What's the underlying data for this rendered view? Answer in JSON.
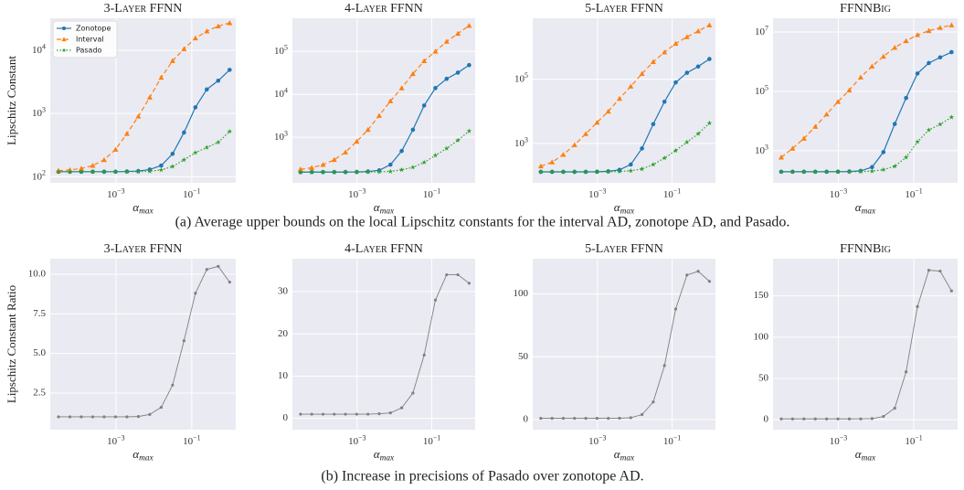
{
  "chart_data": [
    {
      "type": "line",
      "title": "3-Layer FFNN",
      "xlabel": "α_max",
      "ylabel": "Lipschitz Constant",
      "x": [
        3.0517578125e-05,
        6.103515625e-05,
        0.0001220703125,
        0.000244140625,
        0.00048828125,
        0.0009765625,
        0.001953125,
        0.00390625,
        0.0078125,
        0.015625,
        0.03125,
        0.0625,
        0.125,
        0.25,
        0.5,
        1
      ],
      "series": [
        {
          "name": "Zonotope",
          "color": "#1f77b4",
          "marker": "o",
          "linestyle": "solid",
          "values": [
            120,
            120,
            120,
            120,
            120,
            120,
            121,
            123,
            130,
            150,
            230,
            500,
            1250,
            2400,
            3300,
            4900
          ]
        },
        {
          "name": "Interval",
          "color": "#ff7f0e",
          "marker": "^",
          "linestyle": "dashed",
          "values": [
            125,
            128,
            135,
            150,
            185,
            270,
            480,
            900,
            1800,
            3700,
            6800,
            10500,
            15500,
            20000,
            24000,
            27000
          ]
        },
        {
          "name": "Pasado",
          "color": "#2ca02c",
          "marker": "*",
          "linestyle": "dotted",
          "values": [
            120,
            120,
            120,
            120,
            120,
            120,
            120,
            120,
            122,
            128,
            145,
            185,
            240,
            290,
            350,
            520
          ]
        }
      ],
      "xscale": "log",
      "yscale": "log",
      "xlim": [
        1.85e-05,
        1.45
      ],
      "ylim": [
        80,
        32000
      ],
      "xticks": [
        {
          "value": 0.001,
          "label": "10^−3"
        },
        {
          "value": 0.1,
          "label": "10^−1"
        }
      ],
      "yticks": [
        {
          "value": 100,
          "label": "10^2"
        },
        {
          "value": 1000,
          "label": "10^3"
        },
        {
          "value": 10000,
          "label": "10^4"
        }
      ],
      "grid": true,
      "legend": "upper left"
    },
    {
      "type": "line",
      "title": "4-Layer FFNN",
      "xlabel": "α_max",
      "x": [
        3.0517578125e-05,
        6.103515625e-05,
        0.0001220703125,
        0.000244140625,
        0.00048828125,
        0.0009765625,
        0.001953125,
        0.00390625,
        0.0078125,
        0.015625,
        0.03125,
        0.0625,
        0.125,
        0.25,
        0.5,
        1
      ],
      "series": [
        {
          "name": "Zonotope",
          "color": "#1f77b4",
          "marker": "o",
          "linestyle": "solid",
          "values": [
            155,
            155,
            155,
            155,
            155,
            156,
            160,
            170,
            230,
            480,
            1500,
            5500,
            14000,
            23000,
            32000,
            48000
          ]
        },
        {
          "name": "Interval",
          "color": "#ff7f0e",
          "marker": "^",
          "linestyle": "dashed",
          "values": [
            180,
            195,
            230,
            300,
            450,
            800,
            1500,
            3200,
            7000,
            14000,
            30000,
            60000,
            100000,
            170000,
            260000,
            400000
          ]
        },
        {
          "name": "Pasado",
          "color": "#2ca02c",
          "marker": "*",
          "linestyle": "dotted",
          "values": [
            155,
            155,
            155,
            155,
            155,
            155,
            155,
            157,
            160,
            175,
            200,
            260,
            380,
            550,
            850,
            1400
          ]
        }
      ],
      "xscale": "log",
      "yscale": "log",
      "xlim": [
        1.85e-05,
        1.45
      ],
      "ylim": [
        87,
        590000
      ],
      "xticks": [
        {
          "value": 0.001,
          "label": "10^−3"
        },
        {
          "value": 0.1,
          "label": "10^−1"
        }
      ],
      "yticks": [
        {
          "value": 1000,
          "label": "10^3"
        },
        {
          "value": 10000,
          "label": "10^4"
        },
        {
          "value": 100000,
          "label": "10^5"
        }
      ],
      "grid": true
    },
    {
      "type": "line",
      "title": "5-Layer FFNN",
      "xlabel": "α_max",
      "x": [
        3.0517578125e-05,
        6.103515625e-05,
        0.0001220703125,
        0.000244140625,
        0.00048828125,
        0.0009765625,
        0.001953125,
        0.00390625,
        0.0078125,
        0.015625,
        0.03125,
        0.0625,
        0.125,
        0.25,
        0.5,
        1
      ],
      "series": [
        {
          "name": "Zonotope",
          "color": "#1f77b4",
          "marker": "o",
          "linestyle": "solid",
          "values": [
            130,
            130,
            130,
            130,
            130,
            131,
            135,
            150,
            220,
            700,
            4000,
            20000,
            80000,
            160000,
            250000,
            430000
          ]
        },
        {
          "name": "Interval",
          "color": "#ff7f0e",
          "marker": "^",
          "linestyle": "dashed",
          "values": [
            195,
            260,
            450,
            900,
            2000,
            4500,
            10000,
            25000,
            60000,
            150000,
            350000,
            700000,
            1300000,
            2100000,
            3200000,
            4900000
          ]
        },
        {
          "name": "Pasado",
          "color": "#2ca02c",
          "marker": "*",
          "linestyle": "dotted",
          "values": [
            130,
            130,
            130,
            130,
            130,
            130,
            131,
            133,
            140,
            160,
            220,
            350,
            600,
            1100,
            2000,
            4300
          ]
        }
      ],
      "xscale": "log",
      "yscale": "log",
      "xlim": [
        1.85e-05,
        1.45
      ],
      "ylim": [
        59,
        8000000
      ],
      "xticks": [
        {
          "value": 0.001,
          "label": "10^−3"
        },
        {
          "value": 0.1,
          "label": "10^−1"
        }
      ],
      "yticks": [
        {
          "value": 1000,
          "label": "10^3"
        },
        {
          "value": 100000,
          "label": "10^5"
        }
      ],
      "grid": true
    },
    {
      "type": "line",
      "title": "FFNNBig",
      "xlabel": "α_max",
      "x": [
        3.0517578125e-05,
        6.103515625e-05,
        0.0001220703125,
        0.000244140625,
        0.00048828125,
        0.0009765625,
        0.001953125,
        0.00390625,
        0.0078125,
        0.015625,
        0.03125,
        0.0625,
        0.125,
        0.25,
        0.5,
        1
      ],
      "series": [
        {
          "name": "Zonotope",
          "color": "#1f77b4",
          "marker": "o",
          "linestyle": "solid",
          "values": [
            196,
            196,
            196,
            196,
            196,
            197,
            200,
            210,
            280,
            900,
            8000,
            60000,
            400000,
            900000,
            1400000,
            2100000
          ]
        },
        {
          "name": "Interval",
          "color": "#ff7f0e",
          "marker": "^",
          "linestyle": "dashed",
          "values": [
            600,
            1200,
            2600,
            6500,
            17000,
            45000,
            110000,
            300000,
            700000,
            1500000,
            3000000,
            5000000,
            8000000,
            11000000,
            14000000,
            17000000
          ]
        },
        {
          "name": "Pasado",
          "color": "#2ca02c",
          "marker": "*",
          "linestyle": "dotted",
          "values": [
            196,
            196,
            196,
            196,
            196,
            196,
            197,
            199,
            205,
            230,
            300,
            600,
            2000,
            5000,
            7800,
            13500
          ]
        }
      ],
      "xscale": "log",
      "yscale": "log",
      "xlim": [
        1.85e-05,
        1.45
      ],
      "ylim": [
        83,
        29000000
      ],
      "xticks": [
        {
          "value": 0.001,
          "label": "10^−3"
        },
        {
          "value": 0.1,
          "label": "10^−1"
        }
      ],
      "yticks": [
        {
          "value": 1000,
          "label": "10^3"
        },
        {
          "value": 100000,
          "label": "10^5"
        },
        {
          "value": 10000000,
          "label": "10^7"
        }
      ],
      "grid": true
    },
    {
      "type": "line",
      "title": "3-Layer FFNN",
      "xlabel": "α_max",
      "ylabel": "Lipschitz Constant Ratio",
      "x": [
        3.0517578125e-05,
        6.103515625e-05,
        0.0001220703125,
        0.000244140625,
        0.00048828125,
        0.0009765625,
        0.001953125,
        0.00390625,
        0.0078125,
        0.015625,
        0.03125,
        0.0625,
        0.125,
        0.25,
        0.5,
        1
      ],
      "series": [
        {
          "color": "#808080",
          "marker": "o",
          "linestyle": "solid",
          "values": [
            1,
            1,
            1,
            1,
            1,
            1,
            1,
            1.02,
            1.15,
            1.6,
            3.0,
            5.8,
            8.8,
            10.3,
            10.5,
            9.5
          ]
        }
      ],
      "xscale": "log",
      "yscale": "linear",
      "xlim": [
        1.85e-05,
        1.45
      ],
      "ylim": [
        0.19,
        10.98
      ],
      "xticks": [
        {
          "value": 0.001,
          "label": "10^−3"
        },
        {
          "value": 0.1,
          "label": "10^−1"
        }
      ],
      "yticks": [
        2.5,
        {
          "value": 5,
          "label": "5.0"
        },
        7.5,
        {
          "value": 10,
          "label": "10.0"
        }
      ],
      "grid": true
    },
    {
      "type": "line",
      "title": "4-Layer FFNN",
      "xlabel": "α_max",
      "x": [
        3.0517578125e-05,
        6.103515625e-05,
        0.0001220703125,
        0.000244140625,
        0.00048828125,
        0.0009765625,
        0.001953125,
        0.00390625,
        0.0078125,
        0.015625,
        0.03125,
        0.0625,
        0.125,
        0.25,
        0.5,
        1
      ],
      "series": [
        {
          "color": "#808080",
          "marker": "o",
          "linestyle": "solid",
          "values": [
            1,
            1,
            1,
            1,
            1,
            1,
            1,
            1.1,
            1.3,
            2.5,
            6,
            15,
            28,
            34,
            34,
            32
          ]
        }
      ],
      "xscale": "log",
      "yscale": "linear",
      "xlim": [
        1.85e-05,
        1.45
      ],
      "ylim": [
        -2.67,
        37.8
      ],
      "xticks": [
        {
          "value": 0.001,
          "label": "10^−3"
        },
        {
          "value": 0.1,
          "label": "10^−1"
        }
      ],
      "yticks": [
        0,
        10,
        20,
        30
      ],
      "grid": true
    },
    {
      "type": "line",
      "title": "5-Layer FFNN",
      "xlabel": "α_max",
      "x": [
        3.0517578125e-05,
        6.103515625e-05,
        0.0001220703125,
        0.000244140625,
        0.00048828125,
        0.0009765625,
        0.001953125,
        0.00390625,
        0.0078125,
        0.015625,
        0.03125,
        0.0625,
        0.125,
        0.25,
        0.5,
        1
      ],
      "series": [
        {
          "color": "#808080",
          "marker": "o",
          "linestyle": "solid",
          "values": [
            1,
            1,
            1,
            1,
            1,
            1,
            1.02,
            1.1,
            1.5,
            4,
            14,
            43,
            88,
            115,
            118,
            110
          ]
        }
      ],
      "xscale": "log",
      "yscale": "linear",
      "xlim": [
        1.85e-05,
        1.45
      ],
      "ylim": [
        -8,
        128
      ],
      "xticks": [
        {
          "value": 0.001,
          "label": "10^−3"
        },
        {
          "value": 0.1,
          "label": "10^−1"
        }
      ],
      "yticks": [
        0,
        50,
        100
      ],
      "grid": true
    },
    {
      "type": "line",
      "title": "FFNNBig",
      "xlabel": "α_max",
      "x": [
        3.0517578125e-05,
        6.103515625e-05,
        0.0001220703125,
        0.000244140625,
        0.00048828125,
        0.0009765625,
        0.001953125,
        0.00390625,
        0.0078125,
        0.015625,
        0.03125,
        0.0625,
        0.125,
        0.25,
        0.5,
        1
      ],
      "series": [
        {
          "color": "#808080",
          "marker": "o",
          "linestyle": "solid",
          "values": [
            1,
            1,
            1,
            1,
            1,
            1,
            1.02,
            1.06,
            1.4,
            4,
            14,
            58,
            137,
            181,
            180,
            156
          ]
        }
      ],
      "xscale": "log",
      "yscale": "linear",
      "xlim": [
        1.85e-05,
        1.45
      ],
      "ylim": [
        -12,
        195
      ],
      "xticks": [
        {
          "value": 0.001,
          "label": "10^−3"
        },
        {
          "value": 0.1,
          "label": "10^−1"
        }
      ],
      "yticks": [
        0,
        50,
        100,
        150
      ],
      "grid": true
    }
  ],
  "captions": [
    "(a) Average upper bounds on the local Lipschitz constants for the interval AD, zonotope AD, and Pasado.",
    "(b) Increase in precisions of Pasado over zonotope AD."
  ]
}
